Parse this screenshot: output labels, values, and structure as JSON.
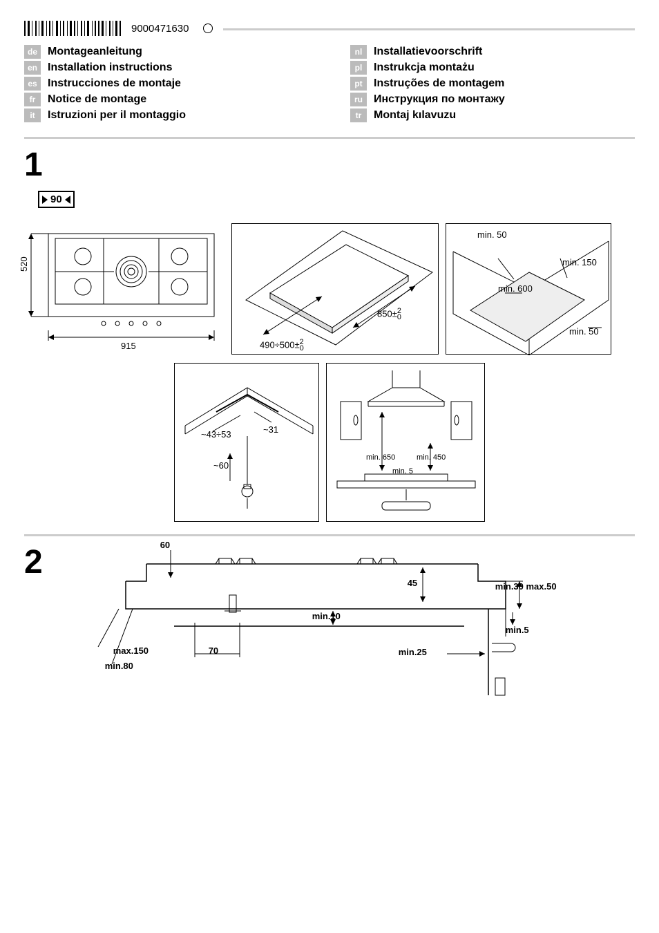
{
  "document": {
    "number": "9000471630",
    "revision_indicator": "O"
  },
  "languages_left": [
    {
      "code": "de",
      "title": "Montageanleitung"
    },
    {
      "code": "en",
      "title": "Installation instructions"
    },
    {
      "code": "es",
      "title": "Instrucciones de montaje"
    },
    {
      "code": "fr",
      "title": "Notice de montage"
    },
    {
      "code": "it",
      "title": "Istruzioni per il montaggio"
    }
  ],
  "languages_right": [
    {
      "code": "nl",
      "title": "Installatievoorschrift"
    },
    {
      "code": "pl",
      "title": "Instrukcja montażu"
    },
    {
      "code": "pt",
      "title": "Instruções de montagem"
    },
    {
      "code": "ru",
      "title": "Инструкция по монтажу"
    },
    {
      "code": "tr",
      "title": "Montaj kılavuzu"
    }
  ],
  "section1": {
    "number": "1",
    "width_badge": "90",
    "hob_top": {
      "width": "915",
      "depth": "520"
    },
    "cutout": {
      "width": "850±",
      "depth_range": "490÷500±",
      "tolerance_sup": "2",
      "tolerance_sub": "0"
    },
    "clearances": {
      "top": "min. 50",
      "edge": "min. 150",
      "front": "min. 600",
      "side": "min. 50"
    },
    "edge_detail": {
      "thickness_range": "~43÷53",
      "overhang": "~31",
      "height": "~60"
    },
    "hood_clearances": {
      "inner": "min. 650",
      "outer": "min. 450",
      "counter": "min. 5"
    }
  },
  "section2": {
    "number": "2",
    "dims": {
      "left_60": "60",
      "depth_45": "45",
      "worktop": "min.30 max.50",
      "gap_10": "min.10",
      "min5": "min.5",
      "max150": "max.150",
      "val_70": "70",
      "min25": "min.25",
      "min80": "min.80"
    }
  },
  "style": {
    "badge_bg": "#bbbbbb",
    "badge_fg": "#ffffff",
    "divider_color": "#cccccc",
    "line_color": "#000000",
    "diagram_fill": "#eeeeee"
  }
}
